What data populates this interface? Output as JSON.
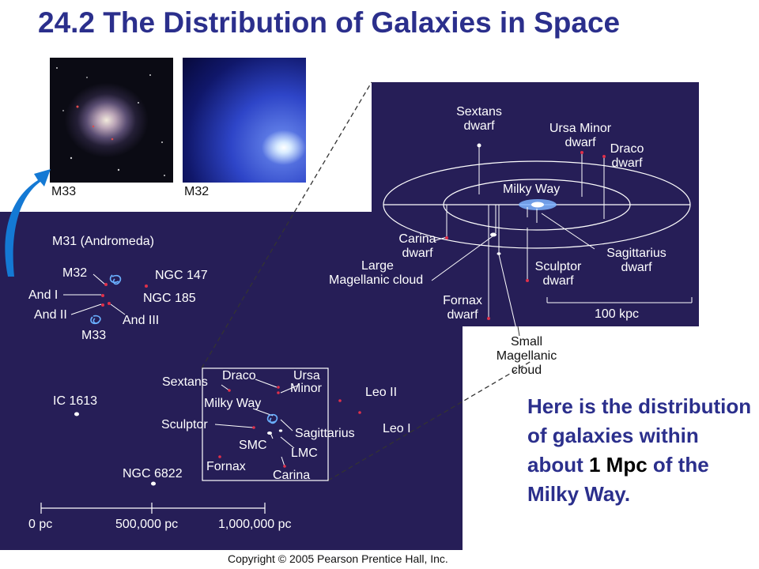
{
  "title": "24.2 The Distribution of Galaxies in Space",
  "photos": {
    "m33": "M33",
    "m32": "M32"
  },
  "main_labels": {
    "m31": "M31 (Andromeda)",
    "m32": "M32",
    "ngc147": "NGC 147",
    "ngc185": "NGC 185",
    "and1": "And I",
    "and2": "And II",
    "and3": "And III",
    "m33": "M33",
    "ic1613": "IC 1613",
    "ngc6822": "NGC 6822",
    "sextans": "Sextans",
    "draco": "Draco",
    "ursa_minor_1": "Ursa",
    "ursa_minor_2": "Minor",
    "milky_way": "Milky Way",
    "sculptor": "Sculptor",
    "sagittarius": "Sagittarius",
    "smc": "SMC",
    "lmc": "LMC",
    "fornax": "Fornax",
    "carina": "Carina",
    "leo2": "Leo II",
    "leo1": "Leo I"
  },
  "scale_bar": {
    "ticks": [
      "0 pc",
      "500,000 pc",
      "1,000,000 pc"
    ]
  },
  "inset_labels": {
    "sextans_1": "Sextans",
    "sextans_2": "dwarf",
    "ursa_minor_1": "Ursa Minor",
    "ursa_minor_2": "dwarf",
    "draco_1": "Draco",
    "draco_2": "dwarf",
    "milky_way": "Milky Way",
    "carina_1": "Carina",
    "carina_2": "dwarf",
    "lmc_1": "Large",
    "lmc_2": "Magellanic cloud",
    "sagittarius_1": "Sagittarius",
    "sagittarius_2": "dwarf",
    "sculptor_1": "Sculptor",
    "sculptor_2": "dwarf",
    "fornax_1": "Fornax",
    "fornax_2": "dwarf",
    "smc_1": "Small",
    "smc_2": "Magellanic",
    "smc_3": "cloud",
    "scale": "100 kpc"
  },
  "caption": {
    "part1": "Here is the distribution of galaxies within about ",
    "highlight": "1 Mpc",
    "part2": " of the Milky Way."
  },
  "copyright": "Copyright © 2005 Pearson Prentice Hall, Inc.",
  "colors": {
    "title": "#2b2f8c",
    "panel": "#261e57",
    "arrow": "#1479d4",
    "dwarf_dot": "#e0304a",
    "caption_highlight": "#000000"
  }
}
